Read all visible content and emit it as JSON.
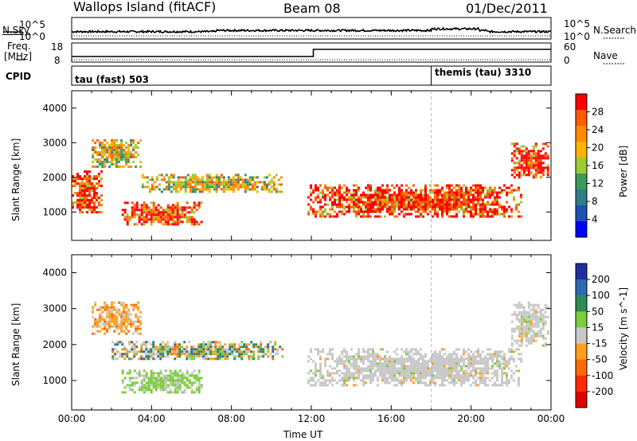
{
  "header": {
    "station": "Wallops Island (fitACF)",
    "beam": "Beam 08",
    "date": "01/Dec/2011"
  },
  "top_panels": {
    "nsky_label": "N.Sky",
    "nsky_ticks": [
      "10^5",
      "10^0"
    ],
    "nsearch_label": "N.Search",
    "nsearch_ticks": [
      "10^5",
      "10^0"
    ],
    "freq_label": "Freq.",
    "freq_unit": "[MHz]",
    "freq_ticks": [
      "18",
      "8"
    ],
    "nave_label": "Nave",
    "nave_ticks": [
      "60",
      "0"
    ],
    "cpid_label": "CPID",
    "cpid_segments": [
      {
        "label": "tau (fast) 503",
        "start_hour": 0,
        "end_hour": 18
      },
      {
        "label": "themis (tau) 3310",
        "start_hour": 18,
        "end_hour": 24
      }
    ]
  },
  "chart_data": [
    {
      "type": "heatmap",
      "panel": "power",
      "xlabel": "",
      "ylabel": "Slant Range [km]",
      "x_range_hours": [
        0,
        24
      ],
      "ylim": [
        180,
        4500
      ],
      "y_ticks": [
        1000,
        2000,
        3000,
        4000
      ],
      "colorbar": {
        "label": "Power [dB]",
        "ticks": [
          "28",
          "24",
          "20",
          "16",
          "12",
          "8",
          "4"
        ],
        "colors": [
          "#ff0000",
          "#ff5a00",
          "#ff8c00",
          "#ffb400",
          "#9acd32",
          "#3c9a5a",
          "#2e7d8c",
          "#1f4fb4",
          "#0000ff"
        ]
      },
      "echo_regions": [
        {
          "hours": [
            0.0,
            1.5
          ],
          "range_km": [
            1000,
            2200
          ],
          "level": "high"
        },
        {
          "hours": [
            1.0,
            3.5
          ],
          "range_km": [
            2300,
            3100
          ],
          "level": "medium"
        },
        {
          "hours": [
            3.5,
            10.5
          ],
          "range_km": [
            1600,
            2100
          ],
          "level": "medium"
        },
        {
          "hours": [
            2.5,
            6.5
          ],
          "range_km": [
            650,
            1300
          ],
          "level": "high"
        },
        {
          "hours": [
            11.8,
            22.5
          ],
          "range_km": [
            850,
            1800
          ],
          "level": "high"
        },
        {
          "hours": [
            22.0,
            23.8
          ],
          "range_km": [
            2000,
            3000
          ],
          "level": "high"
        }
      ]
    },
    {
      "type": "heatmap",
      "panel": "velocity",
      "xlabel": "Time UT",
      "ylabel": "Slant Range [km]",
      "x_range_hours": [
        0,
        24
      ],
      "ylim": [
        180,
        4500
      ],
      "y_ticks": [
        1000,
        2000,
        3000,
        4000
      ],
      "x_ticks": [
        "00:00",
        "04:00",
        "08:00",
        "12:00",
        "16:00",
        "20:00",
        "00:00"
      ],
      "colorbar": {
        "label": "Velocity [m s^-1]",
        "ticks": [
          "200",
          "100",
          "50",
          "15",
          "-15",
          "-50",
          "-100",
          "-200"
        ],
        "colors": [
          "#1f2fa0",
          "#2e6ab4",
          "#2e8b57",
          "#7ccd3c",
          "#c8c8c8",
          "#ff9f1a",
          "#ff6a00",
          "#ff2a00",
          "#e00000"
        ]
      },
      "echo_regions": [
        {
          "hours": [
            1.0,
            3.5
          ],
          "range_km": [
            2300,
            3200
          ],
          "level": "orange"
        },
        {
          "hours": [
            2.0,
            10.5
          ],
          "range_km": [
            1600,
            2100
          ],
          "level": "mixed"
        },
        {
          "hours": [
            2.5,
            6.5
          ],
          "range_km": [
            650,
            1300
          ],
          "level": "green"
        },
        {
          "hours": [
            11.8,
            22.5
          ],
          "range_km": [
            850,
            1900
          ],
          "level": "grey"
        },
        {
          "hours": [
            22.0,
            23.8
          ],
          "range_km": [
            2000,
            3200
          ],
          "level": "grey"
        }
      ]
    }
  ]
}
